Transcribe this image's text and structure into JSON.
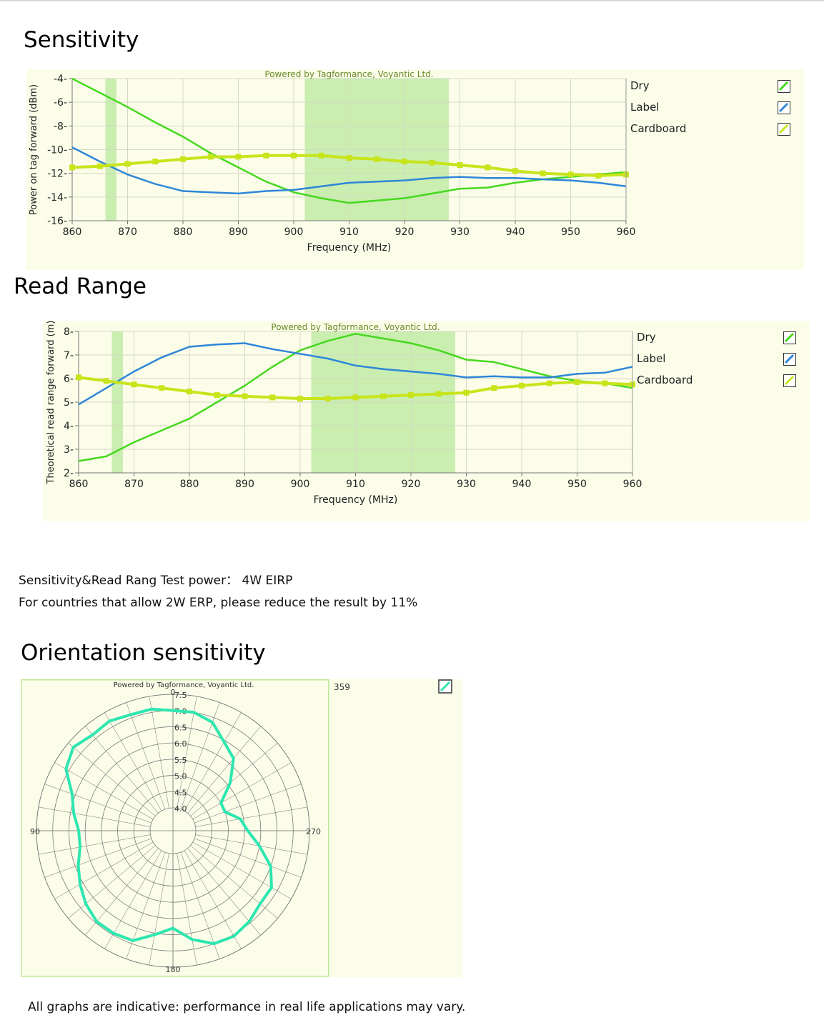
{
  "sections": {
    "sensitivity_heading": "Sensitivity",
    "read_range_heading": "Read Range",
    "orientation_heading": "Orientation sensitivity"
  },
  "notes": {
    "test_power": "Sensitivity&Read Rang Test power：  4W EIRP",
    "erp_note": "For countries that allow 2W ERP, please reduce the result by 11%",
    "disclaimer": "All graphs are indicative: performance in real life applications may vary."
  },
  "colors": {
    "dry": "#46d81e",
    "label": "#2e86d8",
    "cardboard": "#c8e41a",
    "band": "#c9eeb0",
    "polar": "#2ee6b0",
    "panel_bg": "#fbfde8"
  },
  "chart_data": [
    {
      "id": "sensitivity",
      "type": "line",
      "watermark": "Powered by Tagformance, Voyantic Ltd.",
      "xlabel": "Frequency (MHz)",
      "ylabel": "Power on tag forward (dBm)",
      "xlim": [
        860,
        960
      ],
      "ylim": [
        -16,
        -4
      ],
      "xticks": [
        "860",
        "870",
        "880",
        "890",
        "900",
        "910",
        "920",
        "930",
        "940",
        "950",
        "960"
      ],
      "yticks": [
        "-4",
        "-6",
        "-8",
        "-10",
        "-12",
        "-14",
        "-16"
      ],
      "bands": [
        [
          866,
          868
        ],
        [
          902,
          928
        ]
      ],
      "grid": true,
      "legend_position": "right",
      "series": [
        {
          "name": "Dry",
          "color_key": "dry",
          "x": [
            860,
            865,
            870,
            875,
            880,
            885,
            890,
            895,
            900,
            905,
            910,
            915,
            920,
            925,
            930,
            935,
            940,
            945,
            950,
            955,
            960
          ],
          "y": [
            -4.0,
            -5.2,
            -6.4,
            -7.7,
            -8.9,
            -10.3,
            -11.5,
            -12.7,
            -13.6,
            -14.1,
            -14.5,
            -14.3,
            -14.1,
            -13.7,
            -13.3,
            -13.2,
            -12.8,
            -12.5,
            -12.3,
            -12.1,
            -11.9
          ]
        },
        {
          "name": "Label",
          "color_key": "label",
          "x": [
            860,
            865,
            870,
            875,
            880,
            885,
            890,
            895,
            900,
            905,
            910,
            915,
            920,
            925,
            930,
            935,
            940,
            945,
            950,
            955,
            960
          ],
          "y": [
            -9.8,
            -11.0,
            -12.1,
            -12.9,
            -13.5,
            -13.6,
            -13.7,
            -13.5,
            -13.4,
            -13.1,
            -12.8,
            -12.7,
            -12.6,
            -12.4,
            -12.3,
            -12.4,
            -12.4,
            -12.5,
            -12.6,
            -12.8,
            -13.1
          ]
        },
        {
          "name": "Cardboard",
          "color_key": "cardboard",
          "markers": true,
          "x": [
            860,
            865,
            870,
            875,
            880,
            885,
            890,
            895,
            900,
            905,
            910,
            915,
            920,
            925,
            930,
            935,
            940,
            945,
            950,
            955,
            960
          ],
          "y": [
            -11.5,
            -11.4,
            -11.2,
            -11.0,
            -10.8,
            -10.6,
            -10.6,
            -10.5,
            -10.5,
            -10.5,
            -10.7,
            -10.8,
            -11.0,
            -11.1,
            -11.3,
            -11.5,
            -11.8,
            -12.0,
            -12.1,
            -12.2,
            -12.1
          ]
        }
      ]
    },
    {
      "id": "read_range",
      "type": "line",
      "watermark": "Powered by Tagformance, Voyantic Ltd.",
      "xlabel": "Frequency (MHz)",
      "ylabel": "Theoretical read range forward (m)",
      "xlim": [
        860,
        960
      ],
      "ylim": [
        2,
        8
      ],
      "xticks": [
        "860",
        "870",
        "880",
        "890",
        "900",
        "910",
        "920",
        "930",
        "940",
        "950",
        "960"
      ],
      "yticks": [
        "8",
        "7",
        "6",
        "5",
        "4",
        "3",
        "2"
      ],
      "bands": [
        [
          866,
          868
        ],
        [
          902,
          928
        ]
      ],
      "grid": true,
      "legend_position": "right",
      "series": [
        {
          "name": "Dry",
          "color_key": "dry",
          "x": [
            860,
            865,
            870,
            875,
            880,
            885,
            890,
            895,
            900,
            905,
            910,
            915,
            920,
            925,
            930,
            935,
            940,
            945,
            950,
            955,
            960
          ],
          "y": [
            2.5,
            2.7,
            3.3,
            3.8,
            4.3,
            5.0,
            5.7,
            6.5,
            7.2,
            7.6,
            7.9,
            7.7,
            7.5,
            7.2,
            6.8,
            6.7,
            6.4,
            6.1,
            5.9,
            5.8,
            5.6
          ]
        },
        {
          "name": "Label",
          "color_key": "label",
          "x": [
            860,
            865,
            870,
            875,
            880,
            885,
            890,
            895,
            900,
            905,
            910,
            915,
            920,
            925,
            930,
            935,
            940,
            945,
            950,
            955,
            960
          ],
          "y": [
            4.9,
            5.6,
            6.3,
            6.9,
            7.35,
            7.45,
            7.5,
            7.25,
            7.05,
            6.85,
            6.55,
            6.4,
            6.3,
            6.2,
            6.05,
            6.1,
            6.05,
            6.05,
            6.2,
            6.25,
            6.5
          ]
        },
        {
          "name": "Cardboard",
          "color_key": "cardboard",
          "markers": true,
          "x": [
            860,
            865,
            870,
            875,
            880,
            885,
            890,
            895,
            900,
            905,
            910,
            915,
            920,
            925,
            930,
            935,
            940,
            945,
            950,
            955,
            960
          ],
          "y": [
            6.05,
            5.9,
            5.75,
            5.6,
            5.45,
            5.3,
            5.25,
            5.2,
            5.15,
            5.15,
            5.2,
            5.25,
            5.3,
            5.35,
            5.4,
            5.6,
            5.7,
            5.8,
            5.85,
            5.8,
            5.75
          ]
        }
      ]
    },
    {
      "id": "orientation",
      "type": "polar",
      "watermark": "Powered by Tagformance, Voyantic Ltd.",
      "angle_labels": {
        "top": "0",
        "left": "90",
        "bottom": "180",
        "right": "270",
        "corner": "359"
      },
      "rlim": [
        4.0,
        7.5
      ],
      "rticks": [
        "7.5",
        "7.0",
        "6.5",
        "6.0",
        "5.5",
        "5.0",
        "4.5",
        "4.0"
      ],
      "color_key": "polar",
      "angles_deg": [
        0,
        10,
        20,
        30,
        40,
        50,
        60,
        70,
        80,
        90,
        100,
        110,
        120,
        130,
        140,
        150,
        160,
        170,
        180,
        190,
        200,
        210,
        220,
        230,
        240,
        250,
        260,
        270,
        280,
        290,
        300,
        310,
        320,
        330,
        340,
        350
      ],
      "values": [
        7.0,
        7.1,
        7.1,
        7.2,
        7.15,
        7.3,
        7.1,
        6.6,
        6.4,
        6.2,
        6.2,
        6.4,
        6.6,
        6.8,
        6.95,
        6.95,
        6.9,
        6.55,
        6.3,
        6.7,
        7.0,
        7.05,
        6.95,
        6.8,
        6.8,
        6.5,
        6.0,
        5.6,
        5.4,
        5.0,
        5.0,
        5.6,
        6.2,
        6.45,
        6.85,
        7.0
      ],
      "legend_position": "top-right"
    }
  ]
}
